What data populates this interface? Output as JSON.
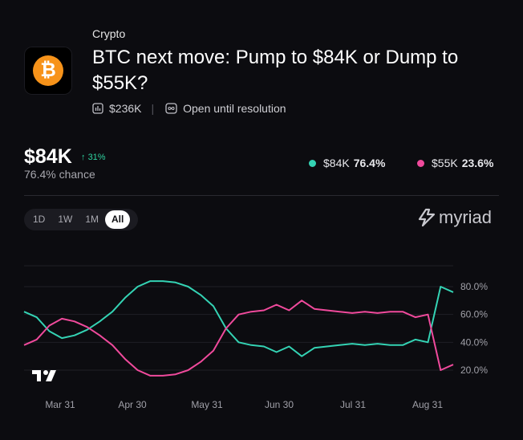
{
  "header": {
    "category": "Crypto",
    "title": "BTC next move: Pump to $84K or Dump to $55K?",
    "volume": "$236K",
    "status": "Open until resolution"
  },
  "summary": {
    "price": "$84K",
    "change": "31%",
    "chance": "76.4% chance"
  },
  "legend": [
    {
      "label": "$84K",
      "value": "76.4%",
      "color": "#34d3b4"
    },
    {
      "label": "$55K",
      "value": "23.6%",
      "color": "#f04a9c"
    }
  ],
  "range_tabs": [
    "1D",
    "1W",
    "1M",
    "All"
  ],
  "active_range": "All",
  "brand": "myriad",
  "chart_data": {
    "type": "line",
    "y_ticks": [
      "80.0%",
      "60.0%",
      "40.0%",
      "20.0%"
    ],
    "x_ticks": [
      "Mar 31",
      "Apr 30",
      "May 31",
      "Jun 30",
      "Jul 31",
      "Aug 31"
    ],
    "ylim": [
      0,
      100
    ],
    "grid": true,
    "series": [
      {
        "name": "$84K",
        "color": "#34d3b4",
        "x": [
          "Mar 19",
          "Mar 24",
          "Mar 29",
          "Apr 3",
          "Apr 8",
          "Apr 13",
          "Apr 18",
          "Apr 23",
          "Apr 28",
          "May 3",
          "May 8",
          "May 13",
          "May 18",
          "May 23",
          "May 28",
          "Jun 2",
          "Jun 7",
          "Jun 12",
          "Jun 17",
          "Jun 22",
          "Jun 27",
          "Jul 2",
          "Jul 7",
          "Jul 12",
          "Jul 17",
          "Jul 22",
          "Jul 27",
          "Aug 1",
          "Aug 6",
          "Aug 11",
          "Aug 16",
          "Aug 21",
          "Aug 26",
          "Aug 31",
          "Sep 2"
        ],
        "values": [
          62,
          58,
          48,
          43,
          45,
          49,
          55,
          62,
          72,
          80,
          84,
          84,
          83,
          80,
          74,
          66,
          50,
          40,
          38,
          37,
          33,
          37,
          30,
          36,
          37,
          38,
          39,
          38,
          39,
          38,
          38,
          42,
          40,
          80,
          76
        ]
      },
      {
        "name": "$55K",
        "color": "#f04a9c",
        "values": [
          38,
          42,
          52,
          57,
          55,
          51,
          45,
          38,
          28,
          20,
          16,
          16,
          17,
          20,
          26,
          34,
          50,
          60,
          62,
          63,
          67,
          63,
          70,
          64,
          63,
          62,
          61,
          62,
          61,
          62,
          62,
          58,
          60,
          20,
          24
        ]
      }
    ]
  }
}
